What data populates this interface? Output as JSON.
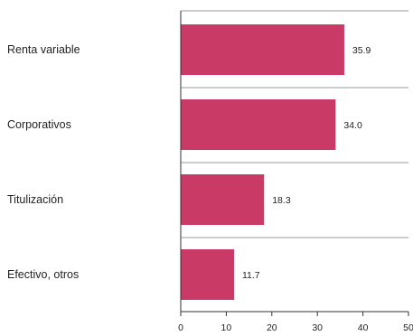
{
  "chart_data": {
    "type": "bar",
    "orientation": "horizontal",
    "title": "",
    "xlabel": "",
    "ylabel": "",
    "categories": [
      "Renta variable",
      "Corporativos",
      "Titulización",
      "Efectivo, otros"
    ],
    "values": [
      35.9,
      34.0,
      18.3,
      11.7
    ],
    "value_labels": [
      "35.9",
      "34.0",
      "18.3",
      "11.7"
    ],
    "xlim": [
      0,
      50
    ],
    "x_ticks": [
      0,
      10,
      20,
      30,
      40,
      50
    ],
    "x_tick_labels": [
      "0",
      "10",
      "20",
      "30",
      "40",
      "50"
    ],
    "grid": false,
    "bar_color": "#c93a67",
    "axis_color": "#333333",
    "separator_color": "#999999"
  }
}
